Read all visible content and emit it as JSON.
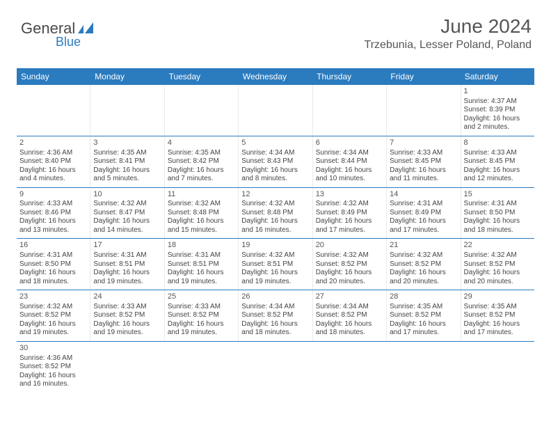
{
  "logo": {
    "general": "General",
    "blue": "Blue"
  },
  "header": {
    "title": "June 2024",
    "location": "Trzebunia, Lesser Poland, Poland"
  },
  "day_headers": [
    "Sunday",
    "Monday",
    "Tuesday",
    "Wednesday",
    "Thursday",
    "Friday",
    "Saturday"
  ],
  "colors": {
    "header_bg": "#2b7bbf",
    "header_text": "#ffffff",
    "rule": "#2b7bbf",
    "body_text": "#444444",
    "title_text": "#555558"
  },
  "weeks": [
    [
      null,
      null,
      null,
      null,
      null,
      null,
      {
        "num": "1",
        "sunrise": "Sunrise: 4:37 AM",
        "sunset": "Sunset: 8:39 PM",
        "daylight1": "Daylight: 16 hours",
        "daylight2": "and 2 minutes."
      }
    ],
    [
      {
        "num": "2",
        "sunrise": "Sunrise: 4:36 AM",
        "sunset": "Sunset: 8:40 PM",
        "daylight1": "Daylight: 16 hours",
        "daylight2": "and 4 minutes."
      },
      {
        "num": "3",
        "sunrise": "Sunrise: 4:35 AM",
        "sunset": "Sunset: 8:41 PM",
        "daylight1": "Daylight: 16 hours",
        "daylight2": "and 5 minutes."
      },
      {
        "num": "4",
        "sunrise": "Sunrise: 4:35 AM",
        "sunset": "Sunset: 8:42 PM",
        "daylight1": "Daylight: 16 hours",
        "daylight2": "and 7 minutes."
      },
      {
        "num": "5",
        "sunrise": "Sunrise: 4:34 AM",
        "sunset": "Sunset: 8:43 PM",
        "daylight1": "Daylight: 16 hours",
        "daylight2": "and 8 minutes."
      },
      {
        "num": "6",
        "sunrise": "Sunrise: 4:34 AM",
        "sunset": "Sunset: 8:44 PM",
        "daylight1": "Daylight: 16 hours",
        "daylight2": "and 10 minutes."
      },
      {
        "num": "7",
        "sunrise": "Sunrise: 4:33 AM",
        "sunset": "Sunset: 8:45 PM",
        "daylight1": "Daylight: 16 hours",
        "daylight2": "and 11 minutes."
      },
      {
        "num": "8",
        "sunrise": "Sunrise: 4:33 AM",
        "sunset": "Sunset: 8:45 PM",
        "daylight1": "Daylight: 16 hours",
        "daylight2": "and 12 minutes."
      }
    ],
    [
      {
        "num": "9",
        "sunrise": "Sunrise: 4:33 AM",
        "sunset": "Sunset: 8:46 PM",
        "daylight1": "Daylight: 16 hours",
        "daylight2": "and 13 minutes."
      },
      {
        "num": "10",
        "sunrise": "Sunrise: 4:32 AM",
        "sunset": "Sunset: 8:47 PM",
        "daylight1": "Daylight: 16 hours",
        "daylight2": "and 14 minutes."
      },
      {
        "num": "11",
        "sunrise": "Sunrise: 4:32 AM",
        "sunset": "Sunset: 8:48 PM",
        "daylight1": "Daylight: 16 hours",
        "daylight2": "and 15 minutes."
      },
      {
        "num": "12",
        "sunrise": "Sunrise: 4:32 AM",
        "sunset": "Sunset: 8:48 PM",
        "daylight1": "Daylight: 16 hours",
        "daylight2": "and 16 minutes."
      },
      {
        "num": "13",
        "sunrise": "Sunrise: 4:32 AM",
        "sunset": "Sunset: 8:49 PM",
        "daylight1": "Daylight: 16 hours",
        "daylight2": "and 17 minutes."
      },
      {
        "num": "14",
        "sunrise": "Sunrise: 4:31 AM",
        "sunset": "Sunset: 8:49 PM",
        "daylight1": "Daylight: 16 hours",
        "daylight2": "and 17 minutes."
      },
      {
        "num": "15",
        "sunrise": "Sunrise: 4:31 AM",
        "sunset": "Sunset: 8:50 PM",
        "daylight1": "Daylight: 16 hours",
        "daylight2": "and 18 minutes."
      }
    ],
    [
      {
        "num": "16",
        "sunrise": "Sunrise: 4:31 AM",
        "sunset": "Sunset: 8:50 PM",
        "daylight1": "Daylight: 16 hours",
        "daylight2": "and 18 minutes."
      },
      {
        "num": "17",
        "sunrise": "Sunrise: 4:31 AM",
        "sunset": "Sunset: 8:51 PM",
        "daylight1": "Daylight: 16 hours",
        "daylight2": "and 19 minutes."
      },
      {
        "num": "18",
        "sunrise": "Sunrise: 4:31 AM",
        "sunset": "Sunset: 8:51 PM",
        "daylight1": "Daylight: 16 hours",
        "daylight2": "and 19 minutes."
      },
      {
        "num": "19",
        "sunrise": "Sunrise: 4:32 AM",
        "sunset": "Sunset: 8:51 PM",
        "daylight1": "Daylight: 16 hours",
        "daylight2": "and 19 minutes."
      },
      {
        "num": "20",
        "sunrise": "Sunrise: 4:32 AM",
        "sunset": "Sunset: 8:52 PM",
        "daylight1": "Daylight: 16 hours",
        "daylight2": "and 20 minutes."
      },
      {
        "num": "21",
        "sunrise": "Sunrise: 4:32 AM",
        "sunset": "Sunset: 8:52 PM",
        "daylight1": "Daylight: 16 hours",
        "daylight2": "and 20 minutes."
      },
      {
        "num": "22",
        "sunrise": "Sunrise: 4:32 AM",
        "sunset": "Sunset: 8:52 PM",
        "daylight1": "Daylight: 16 hours",
        "daylight2": "and 20 minutes."
      }
    ],
    [
      {
        "num": "23",
        "sunrise": "Sunrise: 4:32 AM",
        "sunset": "Sunset: 8:52 PM",
        "daylight1": "Daylight: 16 hours",
        "daylight2": "and 19 minutes."
      },
      {
        "num": "24",
        "sunrise": "Sunrise: 4:33 AM",
        "sunset": "Sunset: 8:52 PM",
        "daylight1": "Daylight: 16 hours",
        "daylight2": "and 19 minutes."
      },
      {
        "num": "25",
        "sunrise": "Sunrise: 4:33 AM",
        "sunset": "Sunset: 8:52 PM",
        "daylight1": "Daylight: 16 hours",
        "daylight2": "and 19 minutes."
      },
      {
        "num": "26",
        "sunrise": "Sunrise: 4:34 AM",
        "sunset": "Sunset: 8:52 PM",
        "daylight1": "Daylight: 16 hours",
        "daylight2": "and 18 minutes."
      },
      {
        "num": "27",
        "sunrise": "Sunrise: 4:34 AM",
        "sunset": "Sunset: 8:52 PM",
        "daylight1": "Daylight: 16 hours",
        "daylight2": "and 18 minutes."
      },
      {
        "num": "28",
        "sunrise": "Sunrise: 4:35 AM",
        "sunset": "Sunset: 8:52 PM",
        "daylight1": "Daylight: 16 hours",
        "daylight2": "and 17 minutes."
      },
      {
        "num": "29",
        "sunrise": "Sunrise: 4:35 AM",
        "sunset": "Sunset: 8:52 PM",
        "daylight1": "Daylight: 16 hours",
        "daylight2": "and 17 minutes."
      }
    ],
    [
      {
        "num": "30",
        "sunrise": "Sunrise: 4:36 AM",
        "sunset": "Sunset: 8:52 PM",
        "daylight1": "Daylight: 16 hours",
        "daylight2": "and 16 minutes."
      },
      null,
      null,
      null,
      null,
      null,
      null
    ]
  ]
}
